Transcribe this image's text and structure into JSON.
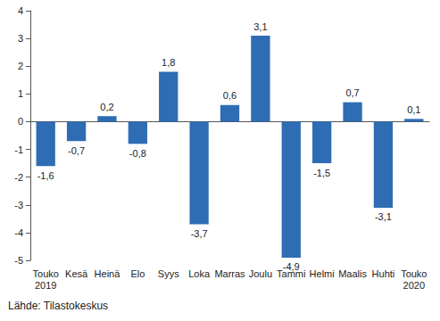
{
  "chart_data": {
    "type": "bar",
    "categories": [
      "Touko\n2019",
      "Kesä",
      "Heinä",
      "Elo",
      "Syys",
      "Loka",
      "Marras",
      "Joulu",
      "Tammi",
      "Helmi",
      "Maalis",
      "Huhti",
      "Touko\n2020"
    ],
    "values": [
      -1.6,
      -0.7,
      0.2,
      -0.8,
      1.8,
      -3.7,
      0.6,
      3.1,
      -4.9,
      -1.5,
      0.7,
      -3.1,
      0.1
    ],
    "value_labels": [
      "-1,6",
      "-0,7",
      "0,2",
      "-0,8",
      "1,8",
      "-3,7",
      "0,6",
      "3,1",
      "-4,9",
      "-1,5",
      "0,7",
      "-3,1",
      "0,1"
    ],
    "color": "#2e6db4",
    "ylim": [
      -5,
      4
    ],
    "yticks": [
      -5,
      -4,
      -3,
      -2,
      -1,
      0,
      1,
      2,
      3,
      4
    ],
    "grid": false,
    "data_labels": true,
    "annotation": "Lähde: Tilastokeskus"
  }
}
